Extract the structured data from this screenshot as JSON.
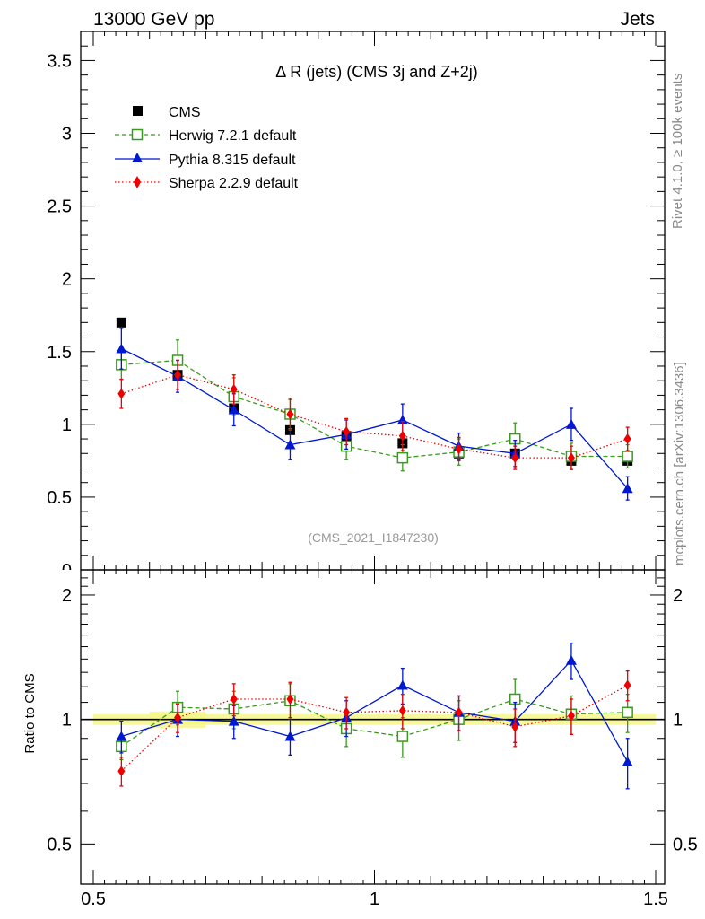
{
  "header": {
    "left": "13000 GeV pp",
    "right": "Jets"
  },
  "side_labels": {
    "rivet": "Rivet 4.1.0, ≥ 100k events",
    "mcplots": "mcplots.cern.ch [arXiv:1306.3436]"
  },
  "chart_data": {
    "type": "scatter",
    "title": "Δ R (jets) (CMS 3j and Z+2j)",
    "analysis_id": "(CMS_2021_I1847230)",
    "xlabel": "",
    "ylabel_main": "",
    "ylabel_ratio": "Ratio to CMS",
    "xlim": [
      0.5,
      1.5
    ],
    "ylim_main": [
      0,
      3.7
    ],
    "ylim_ratio": [
      0.4,
      2.3
    ],
    "x_ticks": [
      0.5,
      1,
      1.5
    ],
    "x_tick_labels": [
      "0.5",
      "1",
      "1.5"
    ],
    "y_ticks_main": [
      0.5,
      1,
      1.5,
      2,
      2.5,
      3,
      3.5
    ],
    "y_tick_labels_main": [
      "0.5",
      "1",
      "1.5",
      "2",
      "2.5",
      "3",
      "3.5"
    ],
    "y_ticks_ratio": [
      0.5,
      1,
      2
    ],
    "y_tick_labels_ratio": [
      "0.5",
      "1",
      "2"
    ],
    "x": [
      0.55,
      0.65,
      0.75,
      0.85,
      0.95,
      1.05,
      1.15,
      1.25,
      1.35,
      1.45
    ],
    "data_series": {
      "name": "CMS",
      "color": "#000000",
      "values": [
        1.7,
        1.34,
        1.11,
        0.96,
        0.92,
        0.87,
        0.8,
        0.8,
        0.75,
        0.75
      ],
      "errors": [
        0.0,
        0.0,
        0.0,
        0.0,
        0.0,
        0.0,
        0.0,
        0.0,
        0.0,
        0.0
      ]
    },
    "series": [
      {
        "name": "Herwig 7.2.1 default",
        "color": "#3a9a1e",
        "marker": "open-square",
        "line": "dashed",
        "values": [
          1.41,
          1.44,
          1.19,
          1.07,
          0.85,
          0.77,
          0.81,
          0.9,
          0.78,
          0.78
        ],
        "errors": [
          0.1,
          0.14,
          0.13,
          0.1,
          0.09,
          0.09,
          0.09,
          0.11,
          0.09,
          0.08
        ],
        "ratio": [
          0.86,
          1.07,
          1.06,
          1.11,
          0.95,
          0.91,
          1.0,
          1.12,
          1.03,
          1.04
        ],
        "ratio_err": [
          0.06,
          0.1,
          0.11,
          0.11,
          0.09,
          0.1,
          0.11,
          0.13,
          0.11,
          0.11
        ]
      },
      {
        "name": "Pythia 8.315 default",
        "color": "#0018d0",
        "marker": "filled-triangle",
        "line": "solid",
        "values": [
          1.52,
          1.33,
          1.1,
          0.86,
          0.93,
          1.03,
          0.85,
          0.8,
          1.0,
          0.56
        ],
        "errors": [
          0.14,
          0.11,
          0.11,
          0.1,
          0.1,
          0.11,
          0.09,
          0.09,
          0.11,
          0.08
        ],
        "ratio": [
          0.91,
          1.0,
          0.99,
          0.91,
          1.01,
          1.21,
          1.04,
          0.99,
          1.39,
          0.79
        ],
        "ratio_err": [
          0.08,
          0.09,
          0.09,
          0.09,
          0.1,
          0.12,
          0.1,
          0.11,
          0.14,
          0.11
        ]
      },
      {
        "name": "Sherpa 2.2.9 default",
        "color": "#ee0000",
        "marker": "filled-diamond",
        "line": "dotted",
        "values": [
          1.21,
          1.34,
          1.24,
          1.07,
          0.95,
          0.92,
          0.83,
          0.77,
          0.77,
          0.9
        ],
        "errors": [
          0.1,
          0.1,
          0.1,
          0.11,
          0.09,
          0.1,
          0.08,
          0.08,
          0.08,
          0.08
        ],
        "ratio": [
          0.75,
          1.01,
          1.12,
          1.12,
          1.04,
          1.05,
          1.04,
          0.96,
          1.02,
          1.21
        ],
        "ratio_err": [
          0.06,
          0.08,
          0.1,
          0.11,
          0.09,
          0.1,
          0.1,
          0.1,
          0.1,
          0.1
        ]
      }
    ],
    "legend_position": "top-left",
    "reference_line": 1
  }
}
